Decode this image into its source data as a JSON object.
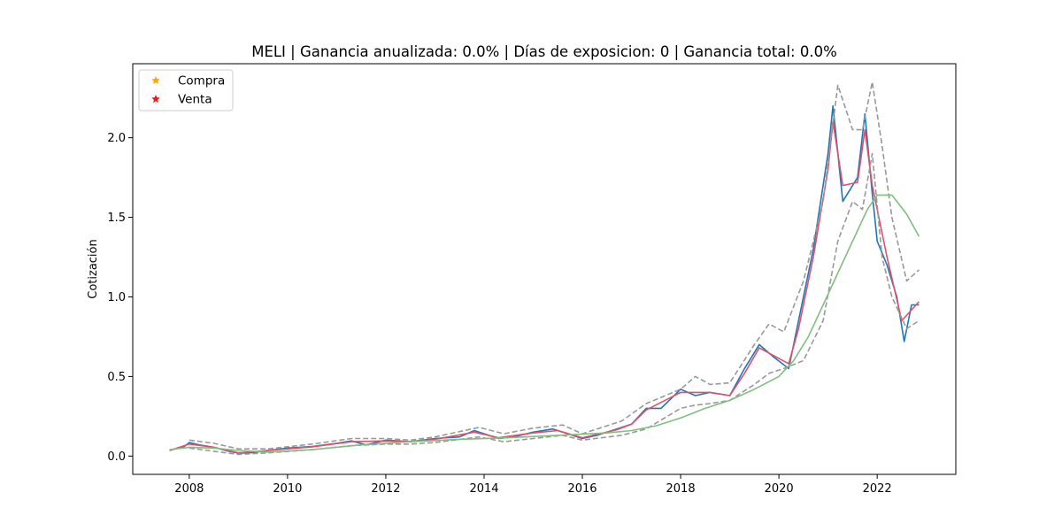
{
  "chart_data": {
    "type": "line",
    "title": "MELI | Ganancia anualizada:   0.0% | Días de exposicion:      0 | Ganancia total:   0.0%",
    "xlabel": "",
    "ylabel": "Cotización",
    "xlim": [
      2006.85,
      2023.6
    ],
    "ylim": [
      -0.115,
      2.465
    ],
    "x_ticks": [
      2008,
      2010,
      2012,
      2014,
      2016,
      2018,
      2020,
      2022
    ],
    "x_tick_labels": [
      "2008",
      "2010",
      "2012",
      "2014",
      "2016",
      "2018",
      "2020",
      "2022"
    ],
    "y_ticks": [
      0.0,
      0.5,
      1.0,
      1.5,
      2.0
    ],
    "y_tick_labels": [
      "0.0",
      "0.5",
      "1.0",
      "1.5",
      "2.0"
    ],
    "grid": false,
    "legend_position": "top-left",
    "legend": [
      {
        "label": "Compra",
        "marker": "star",
        "color": "#ffa500"
      },
      {
        "label": "Venta",
        "marker": "star",
        "color": "#e41a1c"
      }
    ],
    "series": [
      {
        "style": "solid",
        "color": "#1f77b4",
        "x": [
          2007.6,
          2007.9,
          2008.0,
          2008.2,
          2008.5,
          2008.8,
          2009.0,
          2009.3,
          2009.6,
          2010.0,
          2010.5,
          2011.0,
          2011.3,
          2011.6,
          2012.0,
          2012.5,
          2013.0,
          2013.5,
          2013.8,
          2014.0,
          2014.3,
          2014.6,
          2015.0,
          2015.4,
          2015.7,
          2016.0,
          2016.3,
          2016.7,
          2017.0,
          2017.3,
          2017.6,
          2018.0,
          2018.3,
          2018.6,
          2019.0,
          2019.3,
          2019.6,
          2019.9,
          2020.2,
          2020.4,
          2020.7,
          2021.0,
          2021.1,
          2021.3,
          2021.6,
          2021.75,
          2021.9,
          2022.0,
          2022.2,
          2022.4,
          2022.55,
          2022.7,
          2022.85
        ],
        "y": [
          0.035,
          0.06,
          0.085,
          0.07,
          0.055,
          0.03,
          0.018,
          0.022,
          0.035,
          0.05,
          0.06,
          0.08,
          0.095,
          0.07,
          0.1,
          0.09,
          0.11,
          0.12,
          0.16,
          0.14,
          0.11,
          0.12,
          0.15,
          0.17,
          0.14,
          0.11,
          0.13,
          0.17,
          0.2,
          0.3,
          0.3,
          0.42,
          0.38,
          0.4,
          0.38,
          0.55,
          0.7,
          0.62,
          0.55,
          0.85,
          1.3,
          1.9,
          2.2,
          1.6,
          1.75,
          2.15,
          1.65,
          1.35,
          1.2,
          1.0,
          0.72,
          0.95,
          0.95
        ]
      },
      {
        "style": "solid",
        "color": "#e0506b",
        "x": [
          2007.6,
          2008.0,
          2008.5,
          2009.0,
          2009.6,
          2010.5,
          2011.3,
          2012.0,
          2012.5,
          2013.0,
          2013.8,
          2014.3,
          2015.0,
          2015.5,
          2016.0,
          2016.7,
          2017.0,
          2017.3,
          2018.0,
          2018.6,
          2019.0,
          2019.3,
          2019.6,
          2020.2,
          2020.4,
          2020.7,
          2021.0,
          2021.1,
          2021.3,
          2021.6,
          2021.75,
          2021.9,
          2022.2,
          2022.5,
          2022.85
        ],
        "y": [
          0.035,
          0.075,
          0.055,
          0.02,
          0.035,
          0.058,
          0.09,
          0.095,
          0.09,
          0.105,
          0.15,
          0.115,
          0.145,
          0.16,
          0.115,
          0.165,
          0.2,
          0.29,
          0.4,
          0.4,
          0.38,
          0.52,
          0.68,
          0.58,
          0.8,
          1.25,
          1.8,
          2.1,
          1.7,
          1.72,
          2.05,
          1.7,
          1.25,
          0.85,
          0.97
        ]
      },
      {
        "style": "dashed",
        "color": "#999999",
        "x": [
          2008.0,
          2008.5,
          2009.0,
          2009.6,
          2010.5,
          2011.3,
          2012.0,
          2012.5,
          2013.0,
          2013.9,
          2014.4,
          2015.0,
          2015.6,
          2016.0,
          2016.8,
          2017.3,
          2018.0,
          2018.3,
          2018.6,
          2019.0,
          2019.5,
          2019.8,
          2020.1,
          2020.5,
          2020.9,
          2021.2,
          2021.5,
          2021.7,
          2021.9,
          2022.1,
          2022.3,
          2022.6,
          2022.85
        ],
        "y": [
          0.1,
          0.08,
          0.045,
          0.045,
          0.075,
          0.11,
          0.11,
          0.1,
          0.12,
          0.18,
          0.14,
          0.175,
          0.195,
          0.14,
          0.22,
          0.33,
          0.42,
          0.5,
          0.45,
          0.46,
          0.7,
          0.83,
          0.78,
          1.1,
          1.6,
          2.33,
          2.05,
          2.05,
          2.35,
          1.95,
          1.5,
          1.1,
          1.17
        ]
      },
      {
        "style": "dashed",
        "color": "#999999",
        "x": [
          2008.0,
          2008.5,
          2009.0,
          2009.6,
          2010.5,
          2011.3,
          2012.0,
          2012.5,
          2013.0,
          2013.9,
          2014.4,
          2015.0,
          2015.6,
          2016.0,
          2016.8,
          2017.3,
          2018.0,
          2018.3,
          2018.6,
          2019.0,
          2019.5,
          2019.8,
          2020.1,
          2020.5,
          2020.9,
          2021.2,
          2021.5,
          2021.7,
          2021.9,
          2022.1,
          2022.3,
          2022.6,
          2022.85
        ],
        "y": [
          0.05,
          0.03,
          0.01,
          0.02,
          0.04,
          0.065,
          0.075,
          0.075,
          0.085,
          0.12,
          0.09,
          0.11,
          0.13,
          0.1,
          0.13,
          0.17,
          0.3,
          0.32,
          0.33,
          0.35,
          0.45,
          0.52,
          0.55,
          0.6,
          0.85,
          1.35,
          1.6,
          1.55,
          1.9,
          1.25,
          1.0,
          0.8,
          0.85
        ]
      },
      {
        "style": "solid",
        "color": "#7fbf7f",
        "x": [
          2007.6,
          2008.0,
          2008.5,
          2009.0,
          2009.6,
          2010.5,
          2011.5,
          2012.5,
          2013.5,
          2014.5,
          2015.5,
          2016.5,
          2017.0,
          2017.5,
          2018.0,
          2018.5,
          2019.0,
          2019.5,
          2020.0,
          2020.3,
          2020.6,
          2020.9,
          2021.2,
          2021.5,
          2021.8,
          2022.0,
          2022.3,
          2022.6,
          2022.85
        ],
        "y": [
          0.04,
          0.055,
          0.05,
          0.035,
          0.025,
          0.04,
          0.07,
          0.09,
          0.105,
          0.115,
          0.13,
          0.145,
          0.16,
          0.19,
          0.24,
          0.3,
          0.35,
          0.42,
          0.5,
          0.6,
          0.75,
          0.95,
          1.15,
          1.35,
          1.55,
          1.64,
          1.64,
          1.52,
          1.38
        ]
      }
    ]
  }
}
